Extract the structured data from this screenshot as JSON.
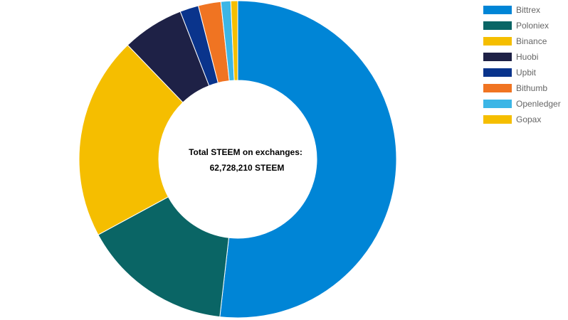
{
  "chart_data": {
    "type": "pie",
    "variant": "doughnut",
    "title": "",
    "center_text": {
      "line1": "Total STEEM on exchanges:",
      "line2": "62,728,210 STEEM"
    },
    "legend_position": "right",
    "slices": [
      {
        "label": "Bittrex",
        "value": 51.8,
        "color": "#0085d6"
      },
      {
        "label": "Poloniex",
        "value": 15.3,
        "color": "#0a6565"
      },
      {
        "label": "Binance",
        "value": 20.7,
        "color": "#f5be00"
      },
      {
        "label": "Huobi",
        "value": 6.3,
        "color": "#1e2146"
      },
      {
        "label": "Upbit",
        "value": 1.9,
        "color": "#0a348c"
      },
      {
        "label": "Bithumb",
        "value": 2.3,
        "color": "#f07422"
      },
      {
        "label": "Openledger",
        "value": 1.0,
        "color": "#3cb6e6"
      },
      {
        "label": "Gopax",
        "value": 0.7,
        "color": "#f5be00"
      }
    ]
  }
}
